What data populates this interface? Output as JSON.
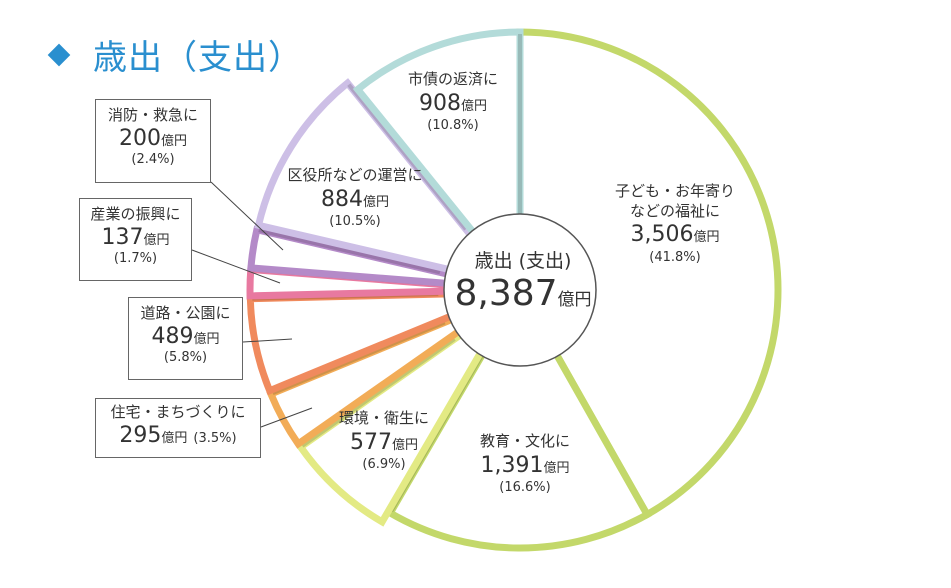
{
  "header": {
    "title": "歳出（支出）",
    "marker": "diamond-icon"
  },
  "chart_data": {
    "type": "pie",
    "title": "歳出（支出）",
    "total": {
      "label": "歳出 (支出)",
      "value": "8,387",
      "unit": "億円"
    },
    "unit": "億円",
    "slices": [
      {
        "name": "子ども・お年寄りなどの福祉に",
        "name_lines": [
          "子ども・お年寄り",
          "などの福祉に"
        ],
        "value": 3506,
        "value_label": "3,506",
        "pct": 41.8,
        "pct_label": "(41.8%)",
        "color": "#c3d86a",
        "exploded": false
      },
      {
        "name": "教育・文化に",
        "name_lines": [
          "教育・文化に"
        ],
        "value": 1391,
        "value_label": "1,391",
        "pct": 16.6,
        "pct_label": "(16.6%)",
        "color": "#c3d86a",
        "exploded": false
      },
      {
        "name": "環境・衛生に",
        "name_lines": [
          "環境・衛生に"
        ],
        "value": 577,
        "value_label": "577",
        "pct": 6.9,
        "pct_label": "(6.9%)",
        "color": "#e3ea84",
        "exploded": true
      },
      {
        "name": "住宅・まちづくりに",
        "name_lines": [
          "住宅・まちづくりに"
        ],
        "value": 295,
        "value_label": "295",
        "pct": 3.5,
        "pct_label": "(3.5%)",
        "color": "#f2ac57",
        "exploded": true
      },
      {
        "name": "道路・公園に",
        "name_lines": [
          "道路・公園に"
        ],
        "value": 489,
        "value_label": "489",
        "pct": 5.8,
        "pct_label": "(5.8%)",
        "color": "#f08a5d",
        "exploded": true
      },
      {
        "name": "産業の振興に",
        "name_lines": [
          "産業の振興に"
        ],
        "value": 137,
        "value_label": "137",
        "pct": 1.7,
        "pct_label": "(1.7%)",
        "color": "#e879a0",
        "exploded": true
      },
      {
        "name": "消防・救急に",
        "name_lines": [
          "消防・救急に"
        ],
        "value": 200,
        "value_label": "200",
        "pct": 2.4,
        "pct_label": "(2.4%)",
        "color": "#b48ac8",
        "exploded": true
      },
      {
        "name": "区役所などの運営に",
        "name_lines": [
          "区役所などの運営に"
        ],
        "value": 884,
        "value_label": "884",
        "pct": 10.5,
        "pct_label": "(10.5%)",
        "color": "#cdbfe6",
        "exploded": true
      },
      {
        "name": "市債の返済に",
        "name_lines": [
          "市債の返済に"
        ],
        "value": 908,
        "value_label": "908",
        "pct": 10.8,
        "pct_label": "(10.8%)",
        "color": "#b3dbd9",
        "exploded": false
      }
    ]
  }
}
